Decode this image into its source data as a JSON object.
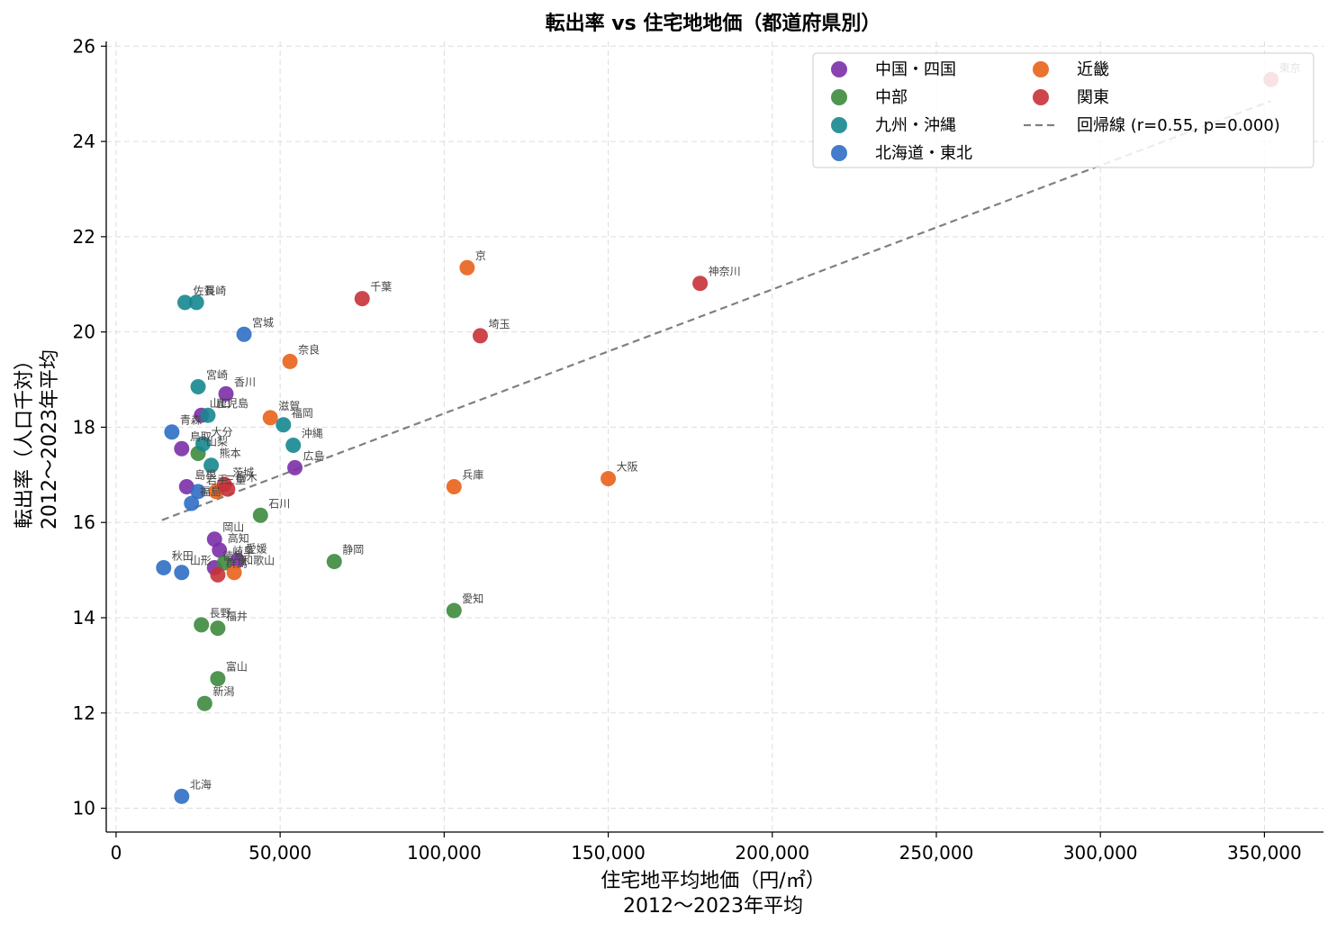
{
  "chart_data": {
    "type": "scatter",
    "title": "転出率 vs 住宅地地価（都道府県別）",
    "xlabel": [
      "住宅地平均地価（円/㎡）",
      "2012〜2023年平均"
    ],
    "ylabel": [
      "転出率（人口千対）",
      "2012〜2023年平均"
    ],
    "xlim": [
      -3000,
      368000
    ],
    "ylim": [
      9.5,
      26.1
    ],
    "xticks": [
      0,
      50000,
      100000,
      150000,
      200000,
      250000,
      300000,
      350000
    ],
    "xtick_labels": [
      "0",
      "50,000",
      "100,000",
      "150,000",
      "200,000",
      "250,000",
      "300,000",
      "350,000"
    ],
    "yticks": [
      10,
      12,
      14,
      16,
      18,
      20,
      22,
      24,
      26
    ],
    "ytick_labels": [
      "10",
      "12",
      "14",
      "16",
      "18",
      "20",
      "22",
      "24",
      "26"
    ],
    "grid": true,
    "legend_position": "top-right",
    "legend_columns": 2,
    "series": [
      {
        "name": "中国・四国",
        "color": "#7B2FA8",
        "points": [
          {
            "label": "香川",
            "x": 33500,
            "y": 18.7
          },
          {
            "label": "山口",
            "x": 26000,
            "y": 18.25
          },
          {
            "label": "鳥取",
            "x": 20000,
            "y": 17.55
          },
          {
            "label": "広島",
            "x": 54500,
            "y": 17.15
          },
          {
            "label": "島根",
            "x": 21500,
            "y": 16.75
          },
          {
            "label": "岡山",
            "x": 30000,
            "y": 15.65
          },
          {
            "label": "高知",
            "x": 31500,
            "y": 15.42
          },
          {
            "label": "愛媛",
            "x": 37000,
            "y": 15.2
          },
          {
            "label": "徳島",
            "x": 30000,
            "y": 15.05
          }
        ]
      },
      {
        "name": "中部",
        "color": "#3D8A3D",
        "points": [
          {
            "label": "山梨",
            "x": 25000,
            "y": 17.45
          },
          {
            "label": "石川",
            "x": 44000,
            "y": 16.15
          },
          {
            "label": "静岡",
            "x": 66500,
            "y": 15.18
          },
          {
            "label": "岐阜",
            "x": 33000,
            "y": 15.15
          },
          {
            "label": "愛知",
            "x": 103000,
            "y": 14.15
          },
          {
            "label": "長野",
            "x": 26000,
            "y": 13.85
          },
          {
            "label": "福井",
            "x": 31000,
            "y": 13.78
          },
          {
            "label": "富山",
            "x": 31000,
            "y": 12.72
          },
          {
            "label": "新潟",
            "x": 27000,
            "y": 12.2
          }
        ]
      },
      {
        "name": "九州・沖縄",
        "color": "#16878F",
        "points": [
          {
            "label": "佐賀",
            "x": 21000,
            "y": 20.62
          },
          {
            "label": "長崎",
            "x": 24500,
            "y": 20.62
          },
          {
            "label": "宮崎",
            "x": 25000,
            "y": 18.85
          },
          {
            "label": "鹿児島",
            "x": 28000,
            "y": 18.25
          },
          {
            "label": "福岡",
            "x": 51000,
            "y": 18.05
          },
          {
            "label": "大分",
            "x": 26500,
            "y": 17.65
          },
          {
            "label": "沖縄",
            "x": 54000,
            "y": 17.62
          },
          {
            "label": "熊本",
            "x": 29000,
            "y": 17.2
          }
        ]
      },
      {
        "name": "北海道・東北",
        "color": "#2F6EC4",
        "points": [
          {
            "label": "宮城",
            "x": 39000,
            "y": 19.95
          },
          {
            "label": "青森",
            "x": 17000,
            "y": 17.9
          },
          {
            "label": "岩手",
            "x": 25000,
            "y": 16.65
          },
          {
            "label": "福島",
            "x": 23000,
            "y": 16.4
          },
          {
            "label": "秋田",
            "x": 14500,
            "y": 15.05
          },
          {
            "label": "山形",
            "x": 20000,
            "y": 14.95
          },
          {
            "label": "北海",
            "x": 20000,
            "y": 10.25
          }
        ]
      },
      {
        "name": "近畿",
        "color": "#E8621A",
        "points": [
          {
            "label": "京",
            "x": 107000,
            "y": 21.35
          },
          {
            "label": "奈良",
            "x": 53000,
            "y": 19.38
          },
          {
            "label": "滋賀",
            "x": 47000,
            "y": 18.2
          },
          {
            "label": "大阪",
            "x": 150000,
            "y": 16.92
          },
          {
            "label": "兵庫",
            "x": 103000,
            "y": 16.75
          },
          {
            "label": "三重",
            "x": 30500,
            "y": 16.65
          },
          {
            "label": "和歌山",
            "x": 36000,
            "y": 14.95
          }
        ]
      },
      {
        "name": "関東",
        "color": "#C83238",
        "points": [
          {
            "label": "東京",
            "x": 352000,
            "y": 25.3
          },
          {
            "label": "神奈川",
            "x": 178000,
            "y": 21.02
          },
          {
            "label": "千葉",
            "x": 75000,
            "y": 20.7
          },
          {
            "label": "埼玉",
            "x": 111000,
            "y": 19.92
          },
          {
            "label": "茨城",
            "x": 33000,
            "y": 16.8
          },
          {
            "label": "栃木",
            "x": 34000,
            "y": 16.7
          },
          {
            "label": "群馬",
            "x": 31000,
            "y": 14.9
          }
        ]
      }
    ],
    "regression": {
      "label": "回帰線 (r=0.55, p=0.000)",
      "color": "#808080",
      "x": [
        14000,
        352000
      ],
      "y": [
        16.05,
        24.85
      ]
    }
  }
}
